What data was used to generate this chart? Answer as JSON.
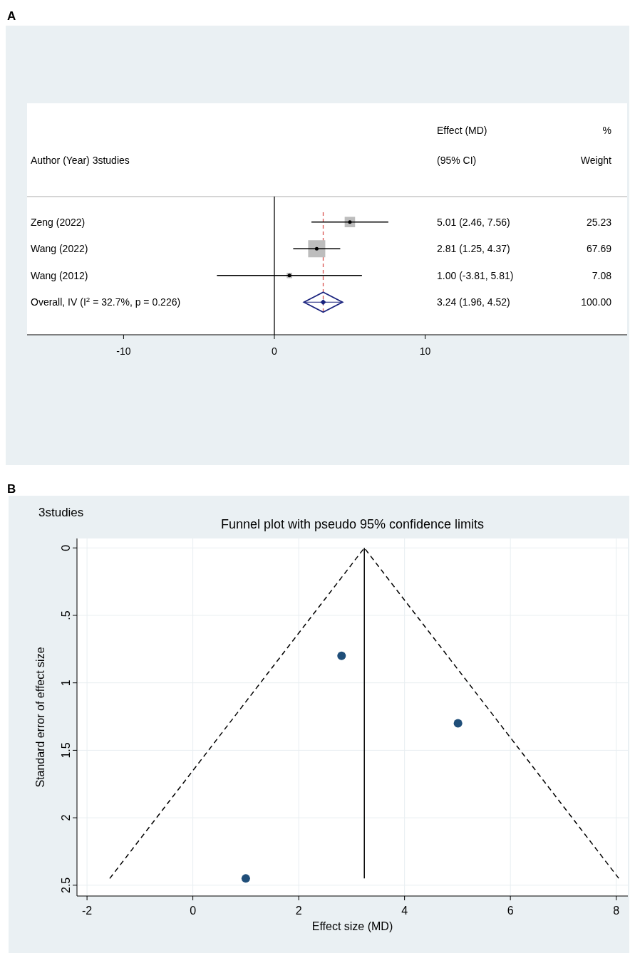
{
  "chart_data": [
    {
      "type": "scatter",
      "orientation": "horizontal",
      "ylabel": "Author (Year) 3studies",
      "categories": [
        "Zeng (2022)",
        "Wang (2022)",
        "Wang (2012)",
        "Overall, IV (I$^{2}$ = 32.7%, p = 0.226)"
      ],
      "series": [
        {
          "type": "bubble",
          "marker": "square",
          "color": "#bdbdbd",
          "values": [
            5.01,
            2.81,
            1.0,
            null
          ],
          "errors": [
            [
              2.46,
              7.56
            ],
            [
              1.25,
              4.37
            ],
            [
              -3.81,
              5.81
            ],
            null
          ],
          "sizes": [
            0.37,
            1,
            0.1,
            null
          ]
        },
        {
          "type": "scatter",
          "marker": "diamond",
          "color": "#1a237e",
          "values": [
            null,
            null,
            null,
            3.24
          ],
          "errors": [
            null,
            null,
            null,
            [
              1.96,
              4.52
            ]
          ]
        }
      ],
      "xlim": [
        -16.4,
        23.4
      ],
      "xticks": [
        -10,
        0,
        10
      ],
      "ref_lines": [
        {
          "axis": "x",
          "value": 0,
          "color": "#000000"
        },
        {
          "axis": "x",
          "value": 3.24,
          "color": "#d9534f",
          "line_style": "dashed"
        }
      ],
      "annotations": [
        "A",
        "Effect (MD)",
        "(95% CI)",
        "%",
        "Weight",
        "5.01 (2.46, 7.56)",
        "25.23",
        "2.81 (1.25, 4.37)",
        "67.69",
        "1.00 (-3.81, 5.81)",
        "7.08",
        "3.24 (1.96, 4.52)",
        "100.00"
      ]
    },
    {
      "type": "scatter",
      "title": "Funnel plot with pseudo 95% confidence limits",
      "subtitle": "3studies",
      "xlabel": "Effect size (MD)",
      "ylabel": "Standard error of effect size",
      "series": [
        {
          "type": "line",
          "color": "#000000",
          "line_style": "dashed",
          "marker": "none",
          "x": [
            -1.57,
            3.24,
            8.05
          ],
          "values": [
            2.45,
            0,
            2.45
          ]
        },
        {
          "type": "line",
          "color": "#000000",
          "line_style": "solid",
          "marker": "none",
          "x": [
            3.24,
            3.24
          ],
          "values": [
            0,
            2.45
          ]
        },
        {
          "type": "scatter",
          "color": "#1f4e79",
          "marker": "circle",
          "x": [
            5.01,
            2.81,
            1.0
          ],
          "values": [
            1.3,
            0.8,
            2.45
          ]
        }
      ],
      "xlim": [
        -2.19,
        8.22
      ],
      "xticks": [
        -2,
        0,
        2,
        4,
        6,
        8
      ],
      "ylim": [
        2.58,
        -0.07
      ],
      "yticks": [
        0,
        {
          "value": 0.5,
          "label": ".5"
        },
        1,
        1.5,
        2,
        2.5
      ],
      "grid": true,
      "annotations": [
        "B"
      ]
    }
  ]
}
